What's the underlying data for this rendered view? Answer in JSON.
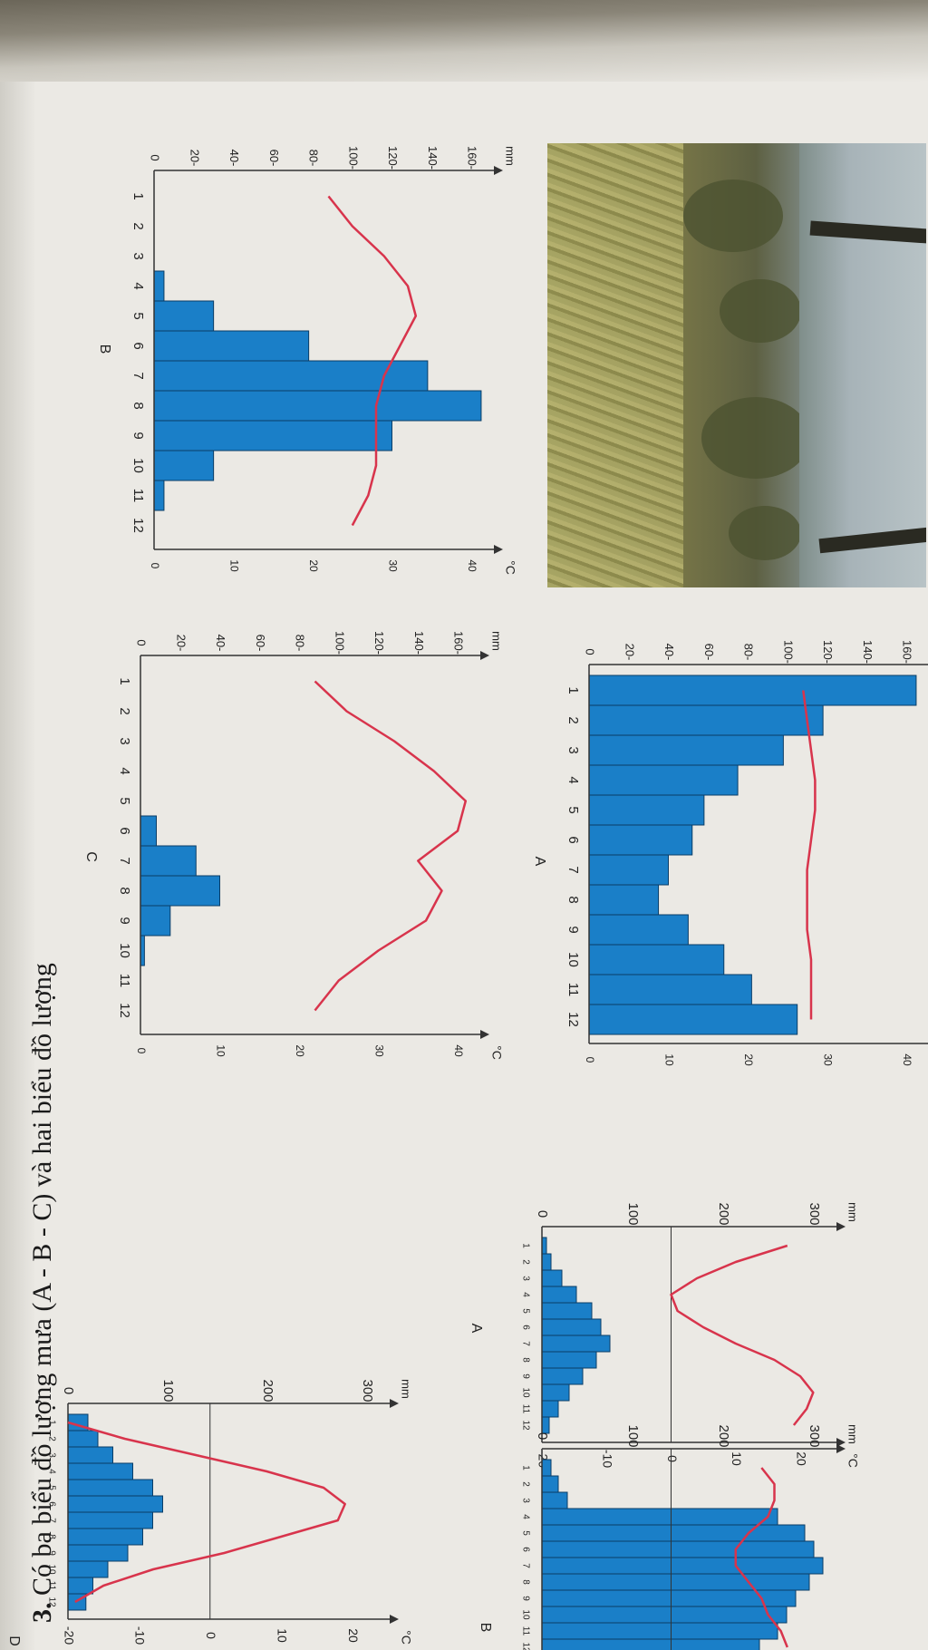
{
  "question": {
    "number": "3.",
    "text": "Có ba biểu đồ lượng mưa (A - B - C) và hai biểu đồ lượng"
  },
  "charts": {
    "mm_unit": "mm",
    "temp_unit": "°C",
    "month_ticks": [
      "1",
      "2",
      "3",
      "4",
      "5",
      "6",
      "7",
      "8",
      "9",
      "10",
      "11",
      "12"
    ],
    "rain_ticks_small": [
      "0",
      "20-",
      "40-",
      "60-",
      "80-",
      "100-",
      "120-",
      "140-",
      "160-"
    ],
    "temp_ticks_small": [
      "0",
      "10",
      "20",
      "30",
      "40"
    ],
    "rain_ticks_large": [
      "0",
      "100",
      "200",
      "300"
    ],
    "temp_ticks_large": [
      "-20",
      "-10",
      "0",
      "10",
      "20"
    ]
  },
  "chart_data": [
    {
      "type": "bar",
      "title": "A",
      "categories": [
        "1",
        "2",
        "3",
        "4",
        "5",
        "6",
        "7",
        "8",
        "9",
        "10",
        "11",
        "12"
      ],
      "series": [
        {
          "values": [
            165,
            118,
            98,
            75,
            58,
            52,
            40,
            35,
            50,
            68,
            82,
            105
          ]
        }
      ],
      "temperature": [
        27,
        27.5,
        28,
        28.5,
        28.5,
        28,
        27.5,
        27.5,
        27.5,
        28,
        28,
        28
      ],
      "ylabel": "mm",
      "y2label": "°C",
      "ylim": [
        0,
        160
      ],
      "y2lim": [
        0,
        40
      ]
    },
    {
      "type": "bar",
      "title": "B",
      "categories": [
        "1",
        "2",
        "3",
        "4",
        "5",
        "6",
        "7",
        "8",
        "9",
        "10",
        "11",
        "12"
      ],
      "series": [
        {
          "values": [
            0,
            0,
            0,
            5,
            30,
            78,
            138,
            165,
            120,
            30,
            5,
            0
          ]
        }
      ],
      "temperature": [
        22,
        25,
        29,
        32,
        33,
        31,
        29,
        28,
        28,
        28,
        27,
        25
      ],
      "ylabel": "mm",
      "y2label": "°C",
      "ylim": [
        0,
        160
      ],
      "y2lim": [
        0,
        40
      ]
    },
    {
      "type": "bar",
      "title": "C",
      "categories": [
        "1",
        "2",
        "3",
        "4",
        "5",
        "6",
        "7",
        "8",
        "9",
        "10",
        "11",
        "12"
      ],
      "series": [
        {
          "values": [
            0,
            0,
            0,
            0,
            0,
            8,
            28,
            40,
            15,
            2,
            0,
            0
          ]
        }
      ],
      "temperature": [
        22,
        26,
        32,
        37,
        41,
        40,
        35,
        38,
        36,
        30,
        25,
        22
      ],
      "ylabel": "mm",
      "y2label": "°C",
      "ylim": [
        0,
        160
      ],
      "y2lim": [
        0,
        40
      ]
    },
    {
      "type": "bar",
      "title": "A",
      "categories": [
        "1",
        "2",
        "3",
        "4",
        "5",
        "6",
        "7",
        "8",
        "9",
        "10",
        "11",
        "12"
      ],
      "series": [
        {
          "values": [
            5,
            10,
            22,
            38,
            55,
            65,
            75,
            60,
            45,
            30,
            18,
            8
          ]
        }
      ],
      "temperature": [
        18,
        10,
        4,
        0,
        1,
        5,
        10,
        16,
        20,
        22,
        21,
        19
      ],
      "ylabel": "mm",
      "y2label": "°C",
      "ylim": [
        0,
        300
      ],
      "y2lim": [
        -20,
        20
      ]
    },
    {
      "type": "bar",
      "title": "B",
      "categories": [
        "1",
        "2",
        "3",
        "4",
        "5",
        "6",
        "7",
        "8",
        "9",
        "10",
        "11",
        "12"
      ],
      "series": [
        {
          "values": [
            10,
            18,
            28,
            260,
            290,
            300,
            310,
            295,
            280,
            270,
            260,
            240
          ]
        }
      ],
      "temperature": [
        14,
        16,
        16,
        15,
        12,
        10,
        10,
        12,
        14,
        15,
        17,
        18
      ],
      "ylabel": "mm",
      "y2label": "°C",
      "ylim": [
        0,
        300
      ],
      "y2lim": [
        -20,
        20
      ]
    },
    {
      "type": "bar",
      "title": "D",
      "categories": [
        "1",
        "2",
        "3",
        "4",
        "5",
        "6",
        "7",
        "8",
        "9",
        "10",
        "11",
        "12"
      ],
      "series": [
        {
          "values": [
            20,
            30,
            45,
            65,
            85,
            95,
            85,
            75,
            60,
            40,
            25,
            18
          ]
        }
      ],
      "temperature": [
        -20,
        -12,
        -2,
        8,
        16,
        19,
        18,
        10,
        2,
        -8,
        -15,
        -19
      ],
      "ylabel": "mm",
      "y2label": "°C",
      "ylim": [
        0,
        300
      ],
      "y2lim": [
        -20,
        20
      ]
    }
  ]
}
